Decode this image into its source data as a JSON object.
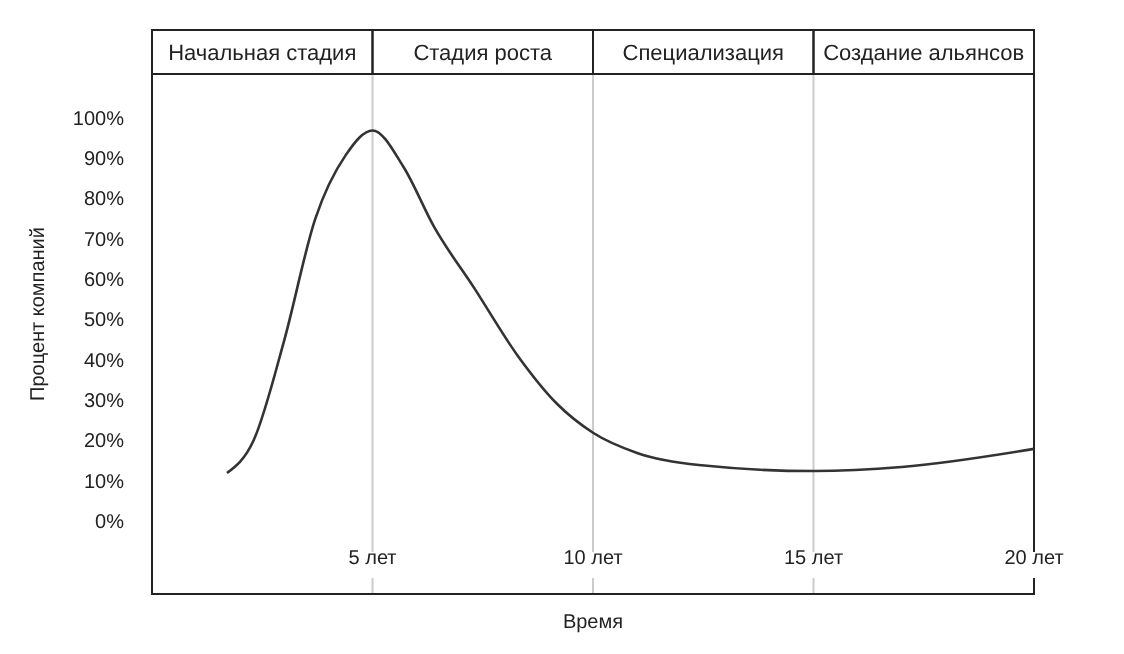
{
  "chart_data": {
    "type": "line",
    "xlabel": "Время",
    "ylabel": "Процент компаний",
    "x": [
      1.7,
      2.3,
      3.0,
      3.7,
      4.4,
      5.0,
      5.7,
      6.4,
      7.3,
      8.3,
      9.2,
      10,
      11,
      12.4,
      15,
      17,
      20
    ],
    "series": [
      {
        "color": "#333333",
        "values": [
          12,
          20,
          45,
          75,
          91,
          97,
          88,
          73,
          58,
          41,
          29,
          22,
          17,
          14,
          12.5,
          13.5,
          18
        ]
      }
    ],
    "xlim": [
      0,
      20
    ],
    "ylim": [
      -18,
      111
    ],
    "xticks": [
      {
        "value": 5,
        "label": "5 лет"
      },
      {
        "value": 10,
        "label": "10 лет"
      },
      {
        "value": 15,
        "label": "15 лет"
      },
      {
        "value": 20,
        "label": "20 лет"
      }
    ],
    "yticks": [
      {
        "value": 0,
        "label": "0%"
      },
      {
        "value": 10,
        "label": "10%"
      },
      {
        "value": 20,
        "label": "20%"
      },
      {
        "value": 30,
        "label": "30%"
      },
      {
        "value": 40,
        "label": "40%"
      },
      {
        "value": 50,
        "label": "50%"
      },
      {
        "value": 60,
        "label": "60%"
      },
      {
        "value": 70,
        "label": "70%"
      },
      {
        "value": 80,
        "label": "80%"
      },
      {
        "value": 90,
        "label": "90%"
      },
      {
        "value": 100,
        "label": "100%"
      }
    ],
    "annotations": [
      "Начальная стадия",
      "Стадия роста",
      "Специализация",
      "Создание альянсов"
    ],
    "grid": "x",
    "line_style": "solid",
    "marker": "none"
  }
}
